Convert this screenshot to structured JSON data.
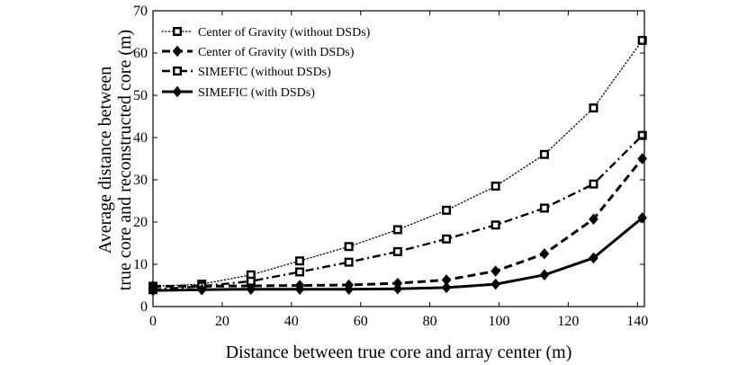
{
  "chart_data": {
    "type": "line",
    "title": "",
    "xlabel": "Distance between true core and array center (m)",
    "ylabel_lines": [
      "Average distance between",
      "true core and reconstructed core (m)"
    ],
    "xlim": [
      0,
      142
    ],
    "ylim": [
      0,
      70
    ],
    "xticks": [
      0,
      20,
      40,
      60,
      80,
      100,
      120,
      140
    ],
    "yticks": [
      0,
      10,
      20,
      30,
      40,
      50,
      60,
      70
    ],
    "grid": false,
    "legend_position": "top-left",
    "x": [
      0,
      14.1,
      28.3,
      42.4,
      56.6,
      70.7,
      84.8,
      99.0,
      113.1,
      127.3,
      141.4
    ],
    "series": [
      {
        "name": "Center of Gravity (without DSDs)",
        "line_style": "dotted",
        "marker": "square",
        "values": [
          4.8,
          5.3,
          7.5,
          10.8,
          14.2,
          18.2,
          22.8,
          28.5,
          36.0,
          47.0,
          63.0
        ]
      },
      {
        "name": "Center of Gravity (with DSDs)",
        "line_style": "dashed",
        "marker": "diamond",
        "values": [
          4.8,
          4.8,
          4.9,
          5.0,
          5.1,
          5.5,
          6.3,
          8.4,
          12.5,
          20.7,
          35.0
        ]
      },
      {
        "name": "SIMEFIC (without DSDs)",
        "line_style": "dashdot",
        "marker": "square",
        "values": [
          4.0,
          4.8,
          6.0,
          8.2,
          10.5,
          13.0,
          16.0,
          19.3,
          23.3,
          29.0,
          40.5
        ]
      },
      {
        "name": "SIMEFIC (with DSDs)",
        "line_style": "solid",
        "marker": "diamond",
        "values": [
          3.8,
          4.0,
          4.1,
          4.1,
          4.1,
          4.2,
          4.5,
          5.3,
          7.5,
          11.5,
          21.0
        ]
      }
    ]
  }
}
